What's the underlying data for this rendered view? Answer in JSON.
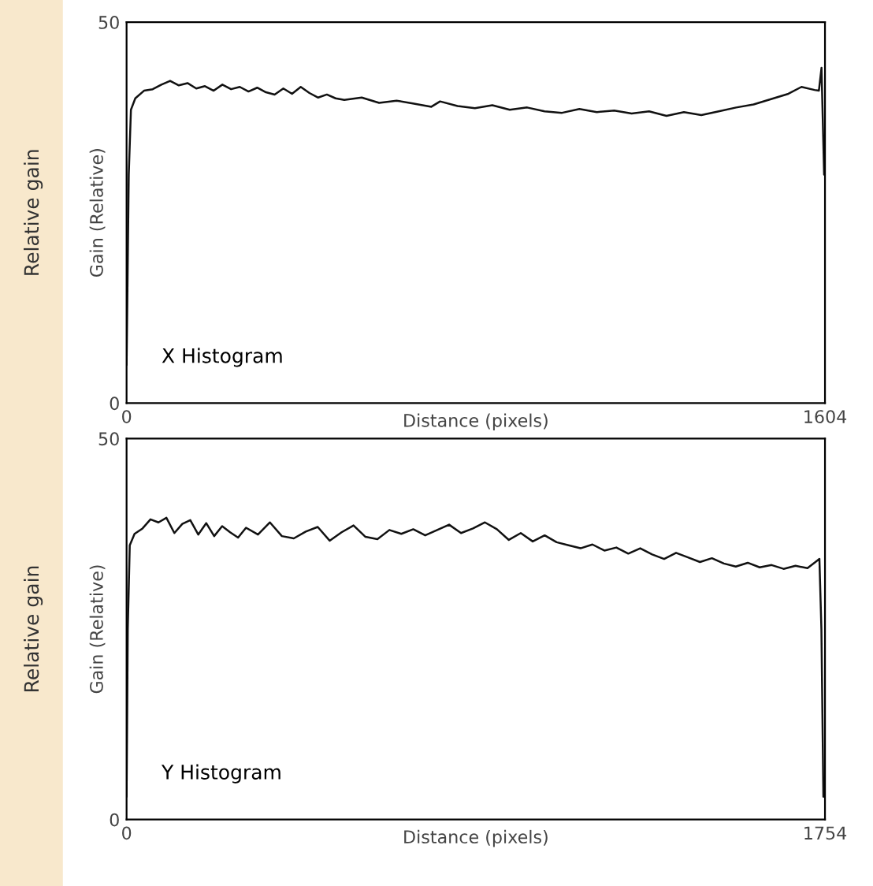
{
  "chart_data": [
    {
      "type": "line",
      "xlabel": "Distance (pixels)",
      "ylabel": "Gain (Relative)",
      "annotations": [
        "X Histogram",
        "Relative gain"
      ],
      "xlim": [
        0,
        1604
      ],
      "xticks": [
        0,
        1604
      ],
      "ylim": [
        0,
        50
      ],
      "yticks": [
        0,
        50
      ],
      "grid": false,
      "series": [
        {
          "color": "#111111",
          "x": [
            0,
            5,
            10,
            20,
            40,
            60,
            80,
            100,
            120,
            140,
            160,
            180,
            200,
            220,
            240,
            260,
            280,
            300,
            320,
            340,
            360,
            380,
            400,
            420,
            440,
            460,
            480,
            500,
            540,
            580,
            620,
            660,
            700,
            720,
            760,
            800,
            840,
            880,
            920,
            960,
            1000,
            1040,
            1080,
            1120,
            1160,
            1200,
            1240,
            1280,
            1320,
            1360,
            1400,
            1440,
            1480,
            1520,
            1550,
            1580,
            1590,
            1596,
            1602
          ],
          "values": [
            5,
            30,
            38.5,
            40,
            41,
            41.2,
            41.8,
            42.3,
            41.7,
            42,
            41.3,
            41.6,
            41,
            41.8,
            41.2,
            41.5,
            40.9,
            41.4,
            40.8,
            40.5,
            41.3,
            40.6,
            41.5,
            40.7,
            40.1,
            40.5,
            40,
            39.8,
            40.1,
            39.4,
            39.7,
            39.3,
            38.9,
            39.6,
            39,
            38.7,
            39.1,
            38.5,
            38.8,
            38.3,
            38.1,
            38.6,
            38.2,
            38.4,
            38,
            38.3,
            37.7,
            38.2,
            37.8,
            38.3,
            38.8,
            39.2,
            39.9,
            40.6,
            41.5,
            41.1,
            41,
            44,
            30
          ]
        }
      ]
    },
    {
      "type": "line",
      "xlabel": "Distance (pixels)",
      "ylabel": "Gain (Relative)",
      "annotations": [
        "Y Histogram",
        "Relative gain"
      ],
      "xlim": [
        0,
        1754
      ],
      "xticks": [
        0,
        1754
      ],
      "ylim": [
        0,
        50
      ],
      "yticks": [
        0,
        50
      ],
      "grid": false,
      "series": [
        {
          "color": "#111111",
          "x": [
            0,
            3,
            8,
            20,
            40,
            60,
            80,
            100,
            120,
            140,
            160,
            180,
            200,
            220,
            240,
            260,
            280,
            300,
            330,
            360,
            390,
            420,
            450,
            480,
            510,
            540,
            570,
            600,
            630,
            660,
            690,
            720,
            750,
            780,
            810,
            840,
            870,
            900,
            930,
            960,
            990,
            1020,
            1050,
            1080,
            1110,
            1140,
            1170,
            1200,
            1230,
            1260,
            1290,
            1320,
            1350,
            1380,
            1410,
            1440,
            1470,
            1500,
            1530,
            1560,
            1590,
            1620,
            1650,
            1680,
            1710,
            1730,
            1740,
            1745,
            1750
          ],
          "values": [
            3,
            25,
            36,
            37.5,
            38.2,
            39.4,
            39,
            39.6,
            37.6,
            38.8,
            39.3,
            37.4,
            38.9,
            37.2,
            38.5,
            37.7,
            37,
            38.3,
            37.4,
            39,
            37.2,
            36.9,
            37.8,
            38.4,
            36.6,
            37.7,
            38.6,
            37.1,
            36.8,
            38,
            37.5,
            38.1,
            37.3,
            38,
            38.7,
            37.6,
            38.2,
            39,
            38.1,
            36.7,
            37.6,
            36.5,
            37.3,
            36.4,
            36,
            35.6,
            36.1,
            35.3,
            35.7,
            34.9,
            35.6,
            34.8,
            34.2,
            35,
            34.4,
            33.8,
            34.3,
            33.6,
            33.2,
            33.7,
            33.1,
            33.4,
            32.9,
            33.3,
            33,
            33.8,
            34.2,
            25,
            3
          ]
        }
      ]
    }
  ]
}
